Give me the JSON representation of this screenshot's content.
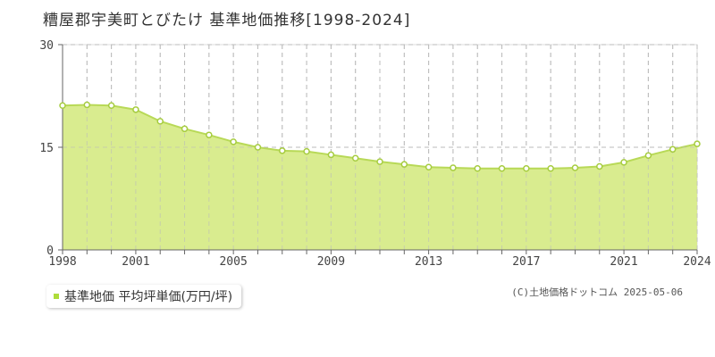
{
  "title": "糟屋郡宇美町とびたけ 基準地価推移[1998-2024]",
  "legend_label": "基準地価 平均坪単価(万円/坪)",
  "copyright": "(C)土地価格ドットコム 2025-05-06",
  "colors": {
    "fill": "#d9ec8f",
    "line": "#b8d957",
    "point_fill": "#ffffff",
    "point_stroke": "#a6cc3f",
    "legend_swatch": "#aedc3a",
    "grid": "#bbbbbb",
    "axis": "#666666"
  },
  "chart_data": {
    "type": "area",
    "x": [
      1998,
      1999,
      2000,
      2001,
      2002,
      2003,
      2004,
      2005,
      2006,
      2007,
      2008,
      2009,
      2010,
      2011,
      2012,
      2013,
      2014,
      2015,
      2016,
      2017,
      2018,
      2019,
      2020,
      2021,
      2022,
      2023,
      2024
    ],
    "series": [
      {
        "name": "基準地価 平均坪単価(万円/坪)",
        "values": [
          21.1,
          21.2,
          21.1,
          20.5,
          18.8,
          17.7,
          16.8,
          15.8,
          15.0,
          14.5,
          14.4,
          13.9,
          13.4,
          12.9,
          12.5,
          12.1,
          12.0,
          11.9,
          11.9,
          11.9,
          11.9,
          12.0,
          12.2,
          12.8,
          13.8,
          14.7,
          15.5
        ]
      }
    ],
    "x_tick_labels": [
      "1998",
      "2001",
      "2005",
      "2009",
      "2013",
      "2017",
      "2021",
      "2024"
    ],
    "y_tick_labels": [
      "0",
      "15",
      "30"
    ],
    "ylim": [
      0,
      30
    ],
    "xlim": [
      1998,
      2024
    ],
    "grid": true
  }
}
